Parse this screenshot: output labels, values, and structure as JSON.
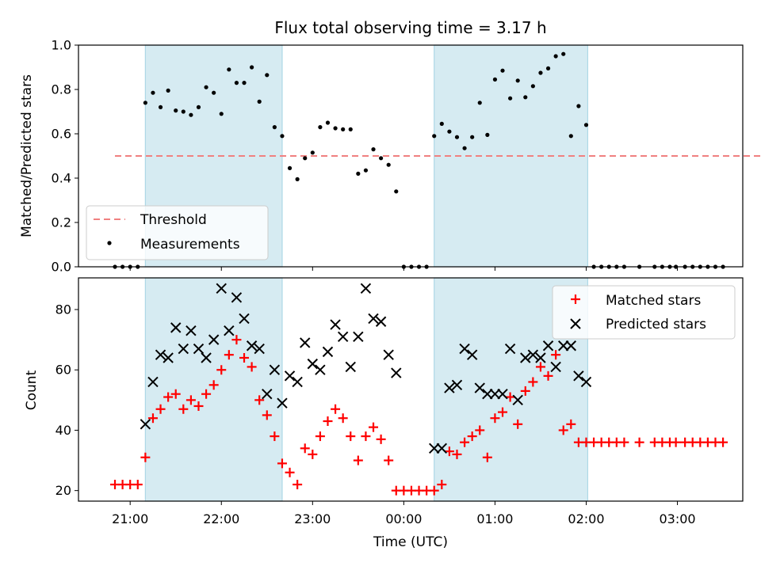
{
  "chart_data": [
    {
      "type": "scatter",
      "title": "Flux total observing time = 3.17 h",
      "xlabel": "",
      "ylabel": "Matched/Predicted stars",
      "ylim": [
        0,
        1.0
      ],
      "yticks": [
        "0.0",
        "0.2",
        "0.4",
        "0.6",
        "0.8",
        "1.0"
      ],
      "legend_position": "lower-left",
      "shaded_intervals": [
        [
          "21:10",
          "22:40"
        ],
        [
          "00:20",
          "02:01"
        ]
      ],
      "threshold": {
        "name": "Threshold",
        "value": 0.5,
        "x_start": "20:50",
        "x_end": "04:20",
        "color": "#f08080"
      },
      "series": [
        {
          "name": "Measurements",
          "color": "#000000",
          "marker": "dot",
          "x": [
            "20:50",
            "20:55",
            "21:00",
            "21:05",
            "21:10",
            "21:15",
            "21:20",
            "21:25",
            "21:30",
            "21:35",
            "21:40",
            "21:45",
            "21:50",
            "21:55",
            "22:00",
            "22:05",
            "22:10",
            "22:15",
            "22:20",
            "22:25",
            "22:30",
            "22:35",
            "22:40",
            "22:45",
            "22:50",
            "22:55",
            "23:00",
            "23:05",
            "23:10",
            "23:15",
            "23:20",
            "23:25",
            "23:30",
            "23:35",
            "23:40",
            "23:45",
            "23:50",
            "23:55",
            "00:00",
            "00:05",
            "00:10",
            "00:15",
            "00:20",
            "00:25",
            "00:30",
            "00:35",
            "00:40",
            "00:45",
            "00:50",
            "00:55",
            "01:00",
            "01:05",
            "01:10",
            "01:15",
            "01:20",
            "01:25",
            "01:30",
            "01:35",
            "01:40",
            "01:45",
            "01:50",
            "01:55",
            "02:00",
            "02:05",
            "02:10",
            "02:15",
            "02:20",
            "02:25",
            "02:35",
            "02:45",
            "02:50",
            "02:55",
            "02:59",
            "03:05",
            "03:10",
            "03:15",
            "03:20",
            "03:25",
            "03:30"
          ],
          "y": [
            0,
            0,
            0,
            0,
            0.74,
            0.785,
            0.72,
            0.795,
            0.705,
            0.7,
            0.685,
            0.72,
            0.81,
            0.785,
            0.69,
            0.89,
            0.83,
            0.83,
            0.9,
            0.745,
            0.865,
            0.63,
            0.59,
            0.445,
            0.395,
            0.49,
            0.515,
            0.63,
            0.65,
            0.625,
            0.62,
            0.62,
            0.42,
            0.435,
            0.53,
            0.49,
            0.46,
            0.34,
            0,
            0,
            0,
            0,
            0.59,
            0.645,
            0.61,
            0.585,
            0.535,
            0.585,
            0.74,
            0.595,
            0.845,
            0.885,
            0.76,
            0.84,
            0.765,
            0.815,
            0.875,
            0.895,
            0.95,
            0.96,
            0.59,
            0.725,
            0.64,
            0,
            0,
            0,
            0,
            0,
            0,
            0,
            0,
            0,
            0,
            0,
            0,
            0,
            0,
            0,
            0
          ]
        }
      ]
    },
    {
      "type": "scatter",
      "title": "",
      "xlabel": "Time (UTC)",
      "ylabel": "Count",
      "ylim": [
        16.5,
        90.5
      ],
      "yticks": [
        "20",
        "40",
        "60",
        "80"
      ],
      "xticks": [
        "21:00",
        "22:00",
        "23:00",
        "00:00",
        "01:00",
        "02:00",
        "03:00"
      ],
      "legend_position": "top-right",
      "shaded_intervals": [
        [
          "21:10",
          "22:40"
        ],
        [
          "00:20",
          "02:01"
        ]
      ],
      "series": [
        {
          "name": "Matched stars",
          "color": "#ff0000",
          "marker": "plus",
          "x": [
            "20:50",
            "20:55",
            "21:00",
            "21:05",
            "21:10",
            "21:15",
            "21:20",
            "21:25",
            "21:30",
            "21:35",
            "21:40",
            "21:45",
            "21:50",
            "21:55",
            "22:00",
            "22:05",
            "22:10",
            "22:15",
            "22:20",
            "22:25",
            "22:30",
            "22:35",
            "22:40",
            "22:45",
            "22:50",
            "22:55",
            "23:00",
            "23:05",
            "23:10",
            "23:15",
            "23:20",
            "23:25",
            "23:30",
            "23:35",
            "23:40",
            "23:45",
            "23:50",
            "23:55",
            "00:00",
            "00:05",
            "00:10",
            "00:15",
            "00:20",
            "00:25",
            "00:30",
            "00:35",
            "00:40",
            "00:45",
            "00:50",
            "00:55",
            "01:00",
            "01:05",
            "01:10",
            "01:15",
            "01:20",
            "01:25",
            "01:30",
            "01:35",
            "01:40",
            "01:45",
            "01:50",
            "01:55",
            "02:00",
            "02:05",
            "02:10",
            "02:15",
            "02:20",
            "02:25",
            "02:35",
            "02:45",
            "02:50",
            "02:55",
            "02:59",
            "03:05",
            "03:10",
            "03:15",
            "03:20",
            "03:25",
            "03:30"
          ],
          "y": [
            22,
            22,
            22,
            22,
            31,
            44,
            47,
            51,
            52,
            47,
            50,
            48,
            52,
            55,
            60,
            65,
            70,
            64,
            61,
            50,
            45,
            38,
            29,
            26,
            22,
            34,
            32,
            38,
            43,
            47,
            44,
            38,
            30,
            38,
            41,
            37,
            30,
            20,
            20,
            20,
            20,
            20,
            20,
            22,
            33,
            32,
            36,
            38,
            40,
            31,
            44,
            46,
            51,
            42,
            53,
            56,
            61,
            58,
            65,
            40,
            42,
            36,
            36,
            36,
            36,
            36,
            36,
            36,
            36,
            36,
            36,
            36,
            36,
            36,
            36,
            36,
            36,
            36,
            36
          ]
        },
        {
          "name": "Predicted stars",
          "color": "#000000",
          "marker": "x",
          "x": [
            "21:10",
            "21:15",
            "21:20",
            "21:25",
            "21:30",
            "21:35",
            "21:40",
            "21:45",
            "21:50",
            "21:55",
            "22:00",
            "22:05",
            "22:10",
            "22:15",
            "22:20",
            "22:25",
            "22:30",
            "22:35",
            "22:40",
            "22:45",
            "22:50",
            "22:55",
            "23:00",
            "23:05",
            "23:10",
            "23:15",
            "23:20",
            "23:25",
            "23:30",
            "23:35",
            "23:40",
            "23:45",
            "23:50",
            "23:55",
            "00:20",
            "00:25",
            "00:30",
            "00:35",
            "00:40",
            "00:45",
            "00:50",
            "00:55",
            "01:00",
            "01:05",
            "01:10",
            "01:15",
            "01:20",
            "01:25",
            "01:30",
            "01:35",
            "01:40",
            "01:45",
            "01:50",
            "01:55",
            "02:00"
          ],
          "y": [
            42,
            56,
            65,
            64,
            74,
            67,
            73,
            67,
            64,
            70,
            87,
            73,
            84,
            77,
            68,
            67,
            52,
            60,
            49,
            58,
            56,
            69,
            62,
            60,
            66,
            75,
            71,
            61,
            71,
            87,
            77,
            76,
            65,
            59,
            34,
            34,
            54,
            55,
            67,
            65,
            54,
            52,
            52,
            52,
            67,
            50,
            64,
            65,
            64,
            68,
            61,
            68,
            68,
            58,
            56
          ]
        }
      ]
    }
  ]
}
